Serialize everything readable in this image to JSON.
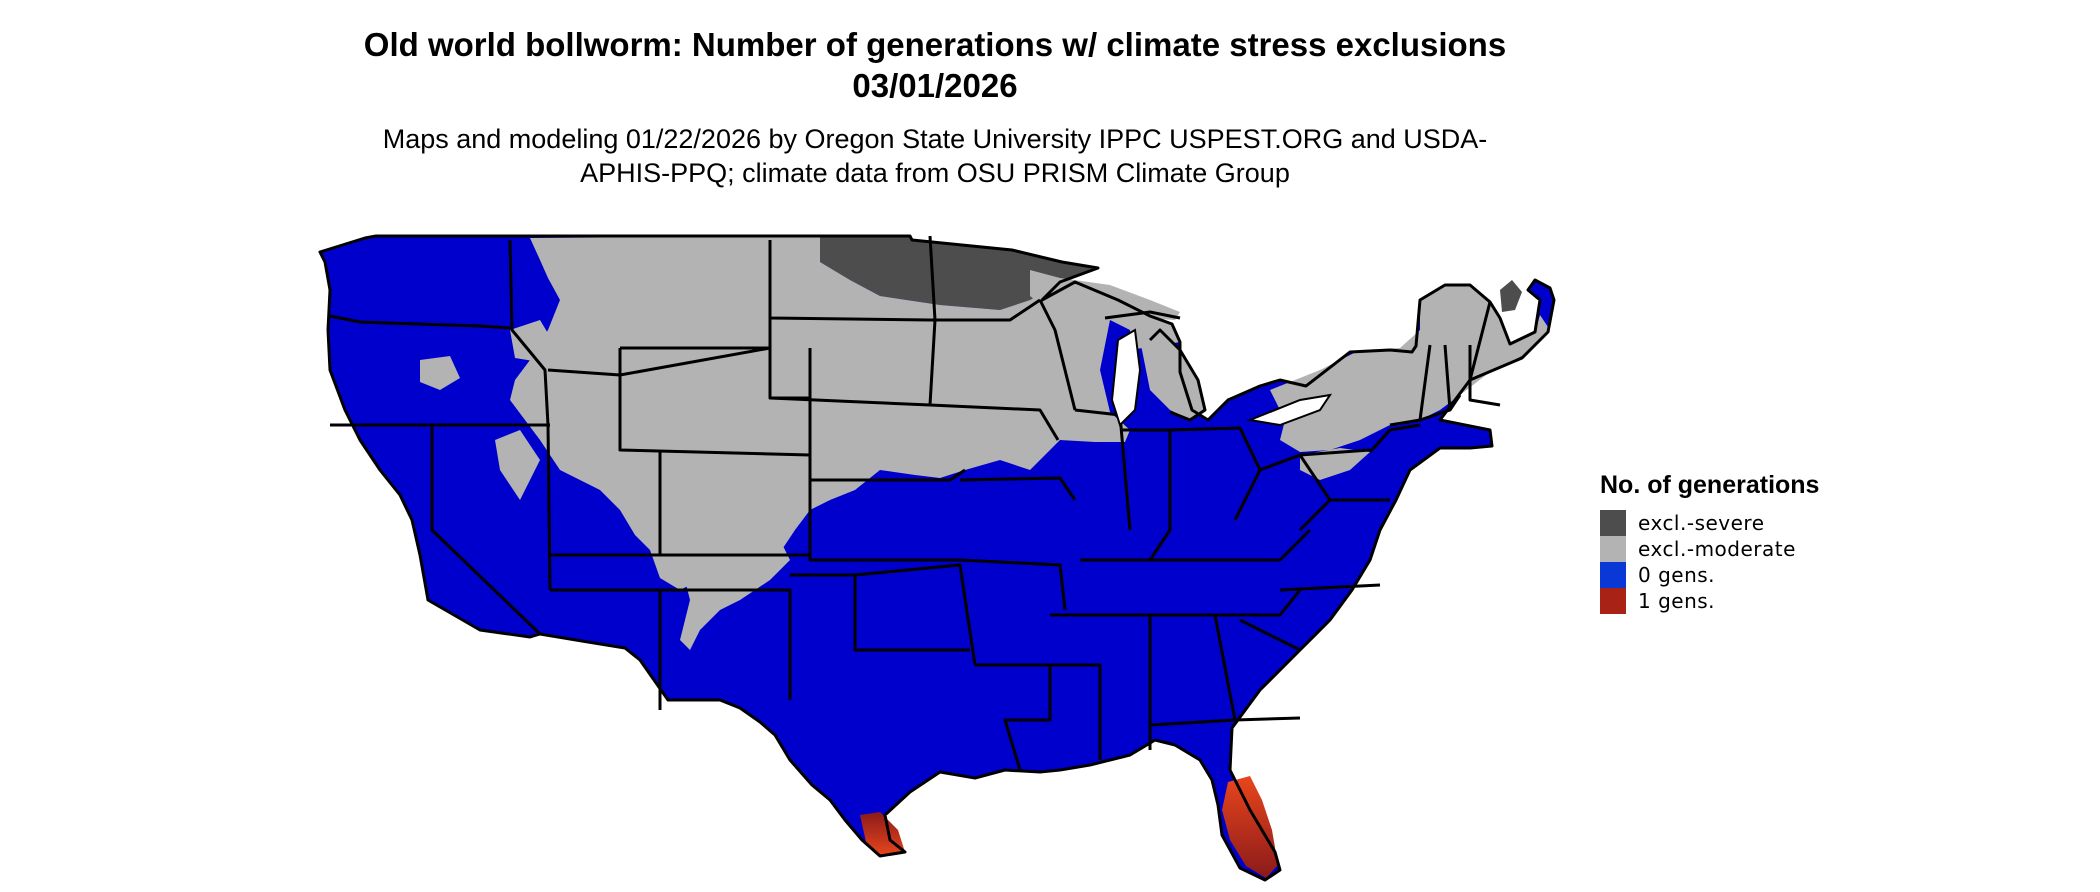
{
  "title": "Old world bollworm: Number of generations w/ climate stress exclusions 03/01/2026",
  "subtitle": "Maps and modeling 01/22/2026 by Oregon State University IPPC USPEST.ORG and USDA-APHIS-PPQ; climate data from OSU PRISM Climate Group",
  "legend": {
    "title": "No. of generations",
    "items": [
      {
        "label": "excl.-severe",
        "color": "#4d4d4d"
      },
      {
        "label": "excl.-moderate",
        "color": "#b3b3b3"
      },
      {
        "label": "0 gens.",
        "color": "#0a38d6"
      },
      {
        "label": "1 gens.",
        "color": "#a82215"
      }
    ]
  },
  "colors": {
    "severe": "#4d4d4d",
    "moderate": "#b3b3b3",
    "zero_gens": "#0000cc",
    "one_gens_dark": "#8b1a1a",
    "one_gens_light": "#e8461c",
    "border": "#000000"
  }
}
